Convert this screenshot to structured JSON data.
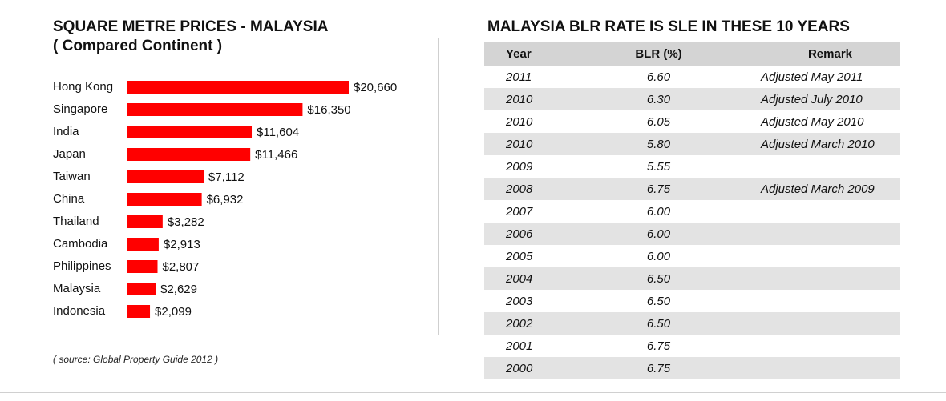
{
  "left_panel": {
    "title": "SQUARE METRE PRICES - MALAYSIA",
    "subtitle": "( Compared Continent )",
    "source": "( source: Global Property Guide 2012 )"
  },
  "right_panel": {
    "title": "MALAYSIA BLR RATE IS SLE IN THESE 10 YEARS",
    "headers": {
      "year": "Year",
      "blr": "BLR (%)",
      "remark": "Remark"
    },
    "rows": [
      {
        "year": "2011",
        "blr": "6.60",
        "remark": "Adjusted May 2011"
      },
      {
        "year": "2010",
        "blr": "6.30",
        "remark": "Adjusted July 2010"
      },
      {
        "year": "2010",
        "blr": "6.05",
        "remark": "Adjusted May 2010"
      },
      {
        "year": "2010",
        "blr": "5.80",
        "remark": "Adjusted March 2010"
      },
      {
        "year": "2009",
        "blr": "5.55",
        "remark": ""
      },
      {
        "year": "2008",
        "blr": "6.75",
        "remark": "Adjusted March 2009"
      },
      {
        "year": "2007",
        "blr": "6.00",
        "remark": ""
      },
      {
        "year": "2006",
        "blr": "6.00",
        "remark": ""
      },
      {
        "year": "2005",
        "blr": "6.00",
        "remark": ""
      },
      {
        "year": "2004",
        "blr": "6.50",
        "remark": ""
      },
      {
        "year": "2003",
        "blr": "6.50",
        "remark": ""
      },
      {
        "year": "2002",
        "blr": "6.50",
        "remark": ""
      },
      {
        "year": "2001",
        "blr": "6.75",
        "remark": ""
      },
      {
        "year": "2000",
        "blr": "6.75",
        "remark": ""
      }
    ]
  },
  "chart_data": [
    {
      "type": "bar",
      "orientation": "horizontal",
      "title": "SQUARE METRE PRICES - MALAYSIA",
      "subtitle": "( Compared Continent )",
      "categories": [
        "Hong Kong",
        "Singapore",
        "India",
        "Japan",
        "Taiwan",
        "China",
        "Thailand",
        "Cambodia",
        "Philippines",
        "Malaysia",
        "Indonesia"
      ],
      "values": [
        20660,
        16350,
        11604,
        11466,
        7112,
        6932,
        3282,
        2913,
        2807,
        2629,
        2099
      ],
      "data_labels": [
        "$20,660",
        "$16,350",
        "$11,604",
        "$11,466",
        "$7,112",
        "$6,932",
        "$3,282",
        "$2,913",
        "$2,807",
        "$2,629",
        "$2,099"
      ],
      "bar_color": "#ff0000",
      "grid": false,
      "legend": "none"
    },
    {
      "type": "table",
      "title": "MALAYSIA BLR RATE IS SLE IN THESE 10 YEARS",
      "columns": [
        "Year",
        "BLR (%)",
        "Remark"
      ],
      "header_color": "#d4d4d4",
      "stripe_color": "#e3e3e3"
    }
  ]
}
